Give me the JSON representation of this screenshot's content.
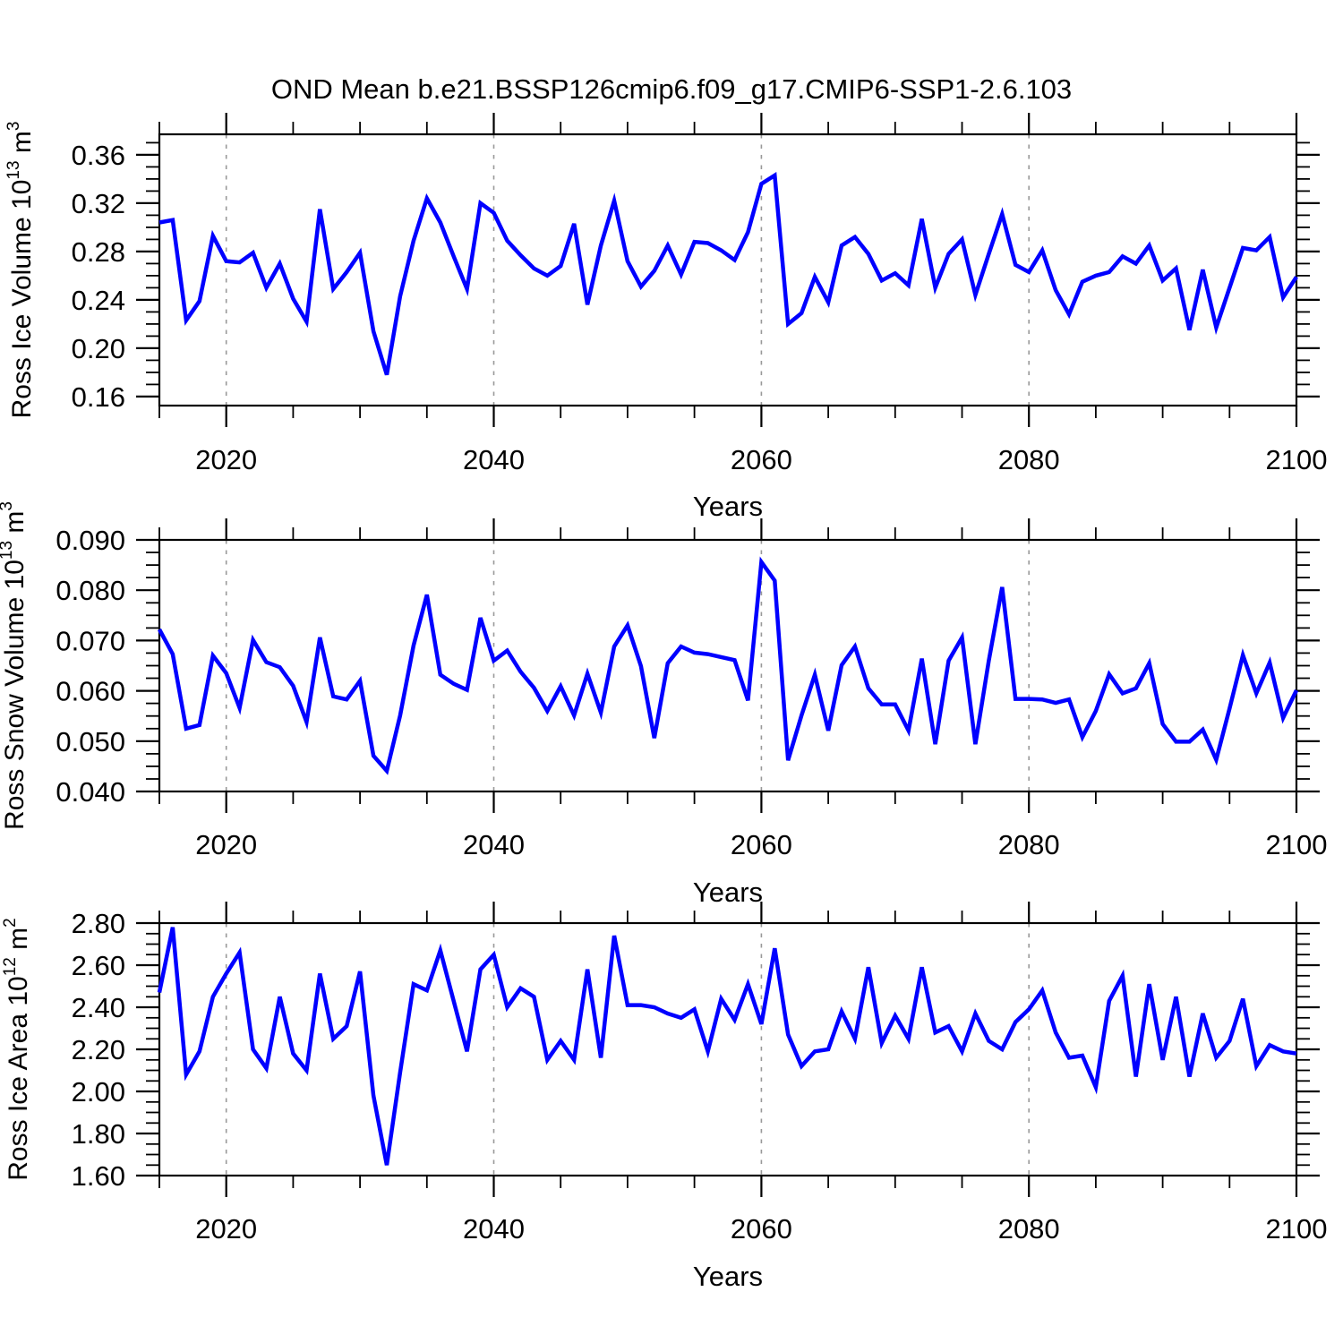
{
  "title": "OND Mean b.e21.BSSP126cmip6.f09_g17.CMIP6-SSP1-2.6.103",
  "x_axis_label": "Years",
  "colors": {
    "line": "#0000FF",
    "axis": "#000000",
    "grid": "#999999",
    "text": "#000000",
    "background": "#FFFFFF"
  },
  "chart_data": [
    {
      "type": "line",
      "series_name": "Ross Ice Volume",
      "ylabel": "Ross Ice Volume 10^13 m^3",
      "ylabel_segments": [
        [
          "Ross Ice Volume 10",
          false
        ],
        [
          "13",
          true
        ],
        [
          " m",
          false
        ],
        [
          "3",
          true
        ]
      ],
      "xlabel": "Years",
      "xlim": [
        2015,
        2100
      ],
      "ylim": [
        0.1525,
        0.377
      ],
      "yticks": [
        0.16,
        0.2,
        0.24,
        0.28,
        0.32,
        0.36
      ],
      "ytick_labels": [
        "0.16",
        "0.20",
        "0.24",
        "0.28",
        "0.32",
        "0.36"
      ],
      "y_minor_step": 0.01,
      "xticks": [
        2020,
        2040,
        2060,
        2080,
        2100
      ],
      "xtick_labels": [
        "2020",
        "2040",
        "2060",
        "2080",
        "2100"
      ],
      "x_minor_step": 5,
      "grid_x": [
        2020,
        2040,
        2060,
        2080
      ],
      "x_start": 2015,
      "x_step": 1,
      "values": [
        0.304,
        0.306,
        0.223,
        0.239,
        0.293,
        0.272,
        0.271,
        0.279,
        0.25,
        0.27,
        0.241,
        0.222,
        0.315,
        0.249,
        0.263,
        0.279,
        0.214,
        0.178,
        0.243,
        0.289,
        0.324,
        0.304,
        0.276,
        0.249,
        0.32,
        0.312,
        0.289,
        0.277,
        0.266,
        0.26,
        0.268,
        0.303,
        0.236,
        0.285,
        0.322,
        0.272,
        0.251,
        0.264,
        0.285,
        0.261,
        0.288,
        0.287,
        0.281,
        0.273,
        0.296,
        0.336,
        0.343,
        0.22,
        0.229,
        0.259,
        0.238,
        0.285,
        0.292,
        0.278,
        0.256,
        0.262,
        0.252,
        0.307,
        0.25,
        0.278,
        0.29,
        0.244,
        0.278,
        0.311,
        0.269,
        0.263,
        0.281,
        0.248,
        0.228,
        0.255,
        0.26,
        0.263,
        0.276,
        0.27,
        0.285,
        0.256,
        0.266,
        0.215,
        0.265,
        0.217,
        0.25,
        0.283,
        0.281,
        0.292,
        0.242,
        0.259
      ]
    },
    {
      "type": "line",
      "series_name": "Ross Snow Volume",
      "ylabel": "Ross Snow Volume 10^13 m^3",
      "ylabel_segments": [
        [
          "Ross Snow Volume 10",
          false
        ],
        [
          "13",
          true
        ],
        [
          " m",
          false
        ],
        [
          "3",
          true
        ]
      ],
      "xlabel": "Years",
      "xlim": [
        2015,
        2100
      ],
      "ylim": [
        0.04,
        0.09
      ],
      "yticks": [
        0.04,
        0.05,
        0.06,
        0.07,
        0.08,
        0.09
      ],
      "ytick_labels": [
        "0.040",
        "0.050",
        "0.060",
        "0.070",
        "0.080",
        "0.090"
      ],
      "y_minor_step": 0.0025,
      "xticks": [
        2020,
        2040,
        2060,
        2080,
        2100
      ],
      "xtick_labels": [
        "2020",
        "2040",
        "2060",
        "2080",
        "2100"
      ],
      "x_minor_step": 5,
      "grid_x": [
        2020,
        2040,
        2060,
        2080
      ],
      "x_start": 2015,
      "x_step": 1,
      "values": [
        0.0722,
        0.0673,
        0.0525,
        0.0532,
        0.067,
        0.0635,
        0.0566,
        0.0701,
        0.0657,
        0.0647,
        0.061,
        0.0538,
        0.0706,
        0.0589,
        0.0583,
        0.062,
        0.0471,
        0.0441,
        0.0551,
        0.069,
        0.0791,
        0.0632,
        0.0614,
        0.0602,
        0.0745,
        0.066,
        0.068,
        0.0638,
        0.0606,
        0.056,
        0.0609,
        0.0551,
        0.0634,
        0.0557,
        0.0688,
        0.073,
        0.0649,
        0.0506,
        0.0655,
        0.0688,
        0.0676,
        0.0673,
        0.0667,
        0.0661,
        0.0581,
        0.0856,
        0.0819,
        0.0462,
        0.0551,
        0.0632,
        0.0521,
        0.0651,
        0.0688,
        0.0605,
        0.0573,
        0.0573,
        0.0521,
        0.0664,
        0.0494,
        0.066,
        0.0706,
        0.0494,
        0.066,
        0.0806,
        0.0584,
        0.0584,
        0.0583,
        0.0576,
        0.0583,
        0.0508,
        0.056,
        0.0633,
        0.0595,
        0.0605,
        0.0655,
        0.0534,
        0.0499,
        0.0499,
        0.0523,
        0.0463,
        0.0565,
        0.0671,
        0.0595,
        0.0656,
        0.0546,
        0.0601
      ]
    },
    {
      "type": "line",
      "series_name": "Ross Ice Area",
      "ylabel": "Ross Ice Area 10^12 m^2",
      "ylabel_segments": [
        [
          "Ross Ice Area 10",
          false
        ],
        [
          "12",
          true
        ],
        [
          " m",
          false
        ],
        [
          "2",
          true
        ]
      ],
      "xlabel": "Years",
      "xlim": [
        2015,
        2100
      ],
      "ylim": [
        1.6,
        2.8
      ],
      "yticks": [
        1.6,
        1.8,
        2.0,
        2.2,
        2.4,
        2.6,
        2.8
      ],
      "ytick_labels": [
        "1.60",
        "1.80",
        "2.00",
        "2.20",
        "2.40",
        "2.60",
        "2.80"
      ],
      "y_minor_step": 0.05,
      "xticks": [
        2020,
        2040,
        2060,
        2080,
        2100
      ],
      "xtick_labels": [
        "2020",
        "2040",
        "2060",
        "2080",
        "2100"
      ],
      "x_minor_step": 5,
      "grid_x": [
        2020,
        2040,
        2060,
        2080
      ],
      "x_start": 2015,
      "x_step": 1,
      "values": [
        2.47,
        2.78,
        2.08,
        2.19,
        2.45,
        2.56,
        2.66,
        2.2,
        2.11,
        2.45,
        2.18,
        2.1,
        2.56,
        2.25,
        2.31,
        2.57,
        1.98,
        1.65,
        2.09,
        2.51,
        2.48,
        2.67,
        2.43,
        2.19,
        2.58,
        2.65,
        2.4,
        2.49,
        2.45,
        2.15,
        2.24,
        2.15,
        2.58,
        2.16,
        2.74,
        2.41,
        2.41,
        2.4,
        2.37,
        2.35,
        2.39,
        2.19,
        2.44,
        2.34,
        2.51,
        2.32,
        2.68,
        2.27,
        2.12,
        2.19,
        2.2,
        2.38,
        2.25,
        2.59,
        2.23,
        2.36,
        2.25,
        2.59,
        2.28,
        2.31,
        2.19,
        2.37,
        2.24,
        2.2,
        2.33,
        2.39,
        2.48,
        2.28,
        2.16,
        2.17,
        2.02,
        2.43,
        2.55,
        2.07,
        2.51,
        2.15,
        2.45,
        2.07,
        2.37,
        2.16,
        2.24,
        2.44,
        2.12,
        2.22,
        2.19,
        2.18
      ]
    }
  ]
}
